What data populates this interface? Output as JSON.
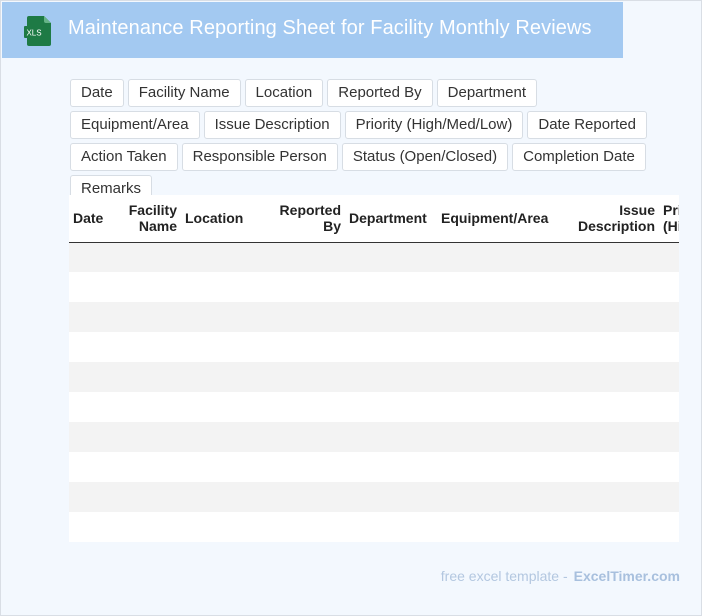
{
  "header": {
    "title": "Maintenance Reporting Sheet for Facility Monthly Reviews",
    "icon_label": "XLS",
    "icon_color": "#1e7a45",
    "background": "#a3c9f1"
  },
  "fields": [
    "Date",
    "Facility Name",
    "Location",
    "Reported By",
    "Department",
    "Equipment/Area",
    "Issue Description",
    "Priority (High/Med/Low)",
    "Date Reported",
    "Action Taken",
    "Responsible Person",
    "Status (Open/Closed)",
    "Completion Date",
    "Remarks"
  ],
  "table": {
    "columns": [
      {
        "line1": "Date",
        "line2": "",
        "align": "left"
      },
      {
        "line1": "Facility",
        "line2": "Name",
        "align": "right"
      },
      {
        "line1": "Location",
        "line2": "",
        "align": "left"
      },
      {
        "line1": "Reported",
        "line2": "By",
        "align": "right"
      },
      {
        "line1": "Department",
        "line2": "",
        "align": "left"
      },
      {
        "line1": "Equipment/Area",
        "line2": "",
        "align": "left"
      },
      {
        "line1": "Issue",
        "line2": "Description",
        "align": "right"
      },
      {
        "line1": "Priority",
        "line2": "(High/Med/Low)",
        "align": "left"
      }
    ],
    "row_count": 10
  },
  "footer": {
    "lead": "free excel template -",
    "brand": "ExcelTimer.com"
  }
}
